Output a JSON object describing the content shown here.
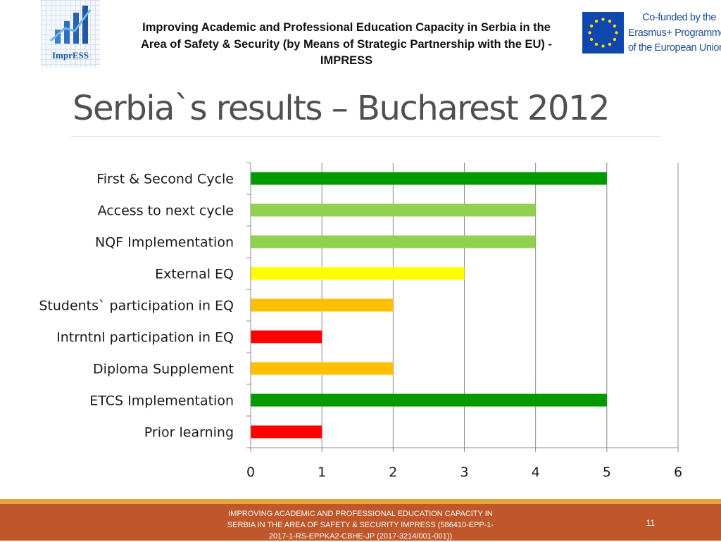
{
  "header": {
    "title": "Improving Academic and Professional Education Capacity in Serbia in the Area of Safety & Security (by Means of Strategic Partnership with the EU) - IMPRESS",
    "logo_text": "ImprESS",
    "eu_lines": [
      "Co-funded by the",
      "Erasmus+ Programme",
      "of the European Union"
    ]
  },
  "slide": {
    "title": "Serbia`s results – Bucharest 2012"
  },
  "chart_data": {
    "type": "bar",
    "orientation": "horizontal",
    "title": "",
    "xlabel": "",
    "ylabel": "",
    "categories": [
      "First & Second Cycle",
      "Access to next cycle",
      "NQF Implementation",
      "External EQ",
      "Students` participation in EQ",
      "Intrntnl participation in EQ",
      "Diploma Supplement",
      "ETCS Implementation",
      "Prior learning"
    ],
    "values": [
      5,
      4,
      4,
      3,
      2,
      1,
      2,
      5,
      1
    ],
    "bar_colors": [
      "#009900",
      "#92d050",
      "#92d050",
      "#ffff00",
      "#ffc000",
      "#ff0000",
      "#ffc000",
      "#009900",
      "#ff0000"
    ],
    "xlim": [
      0,
      6
    ],
    "xticks": [
      0,
      1,
      2,
      3,
      4,
      5,
      6
    ],
    "grid": true,
    "legend": "none"
  },
  "footer": {
    "text": "IMPROVING ACADEMIC AND PROFESSIONAL EDUCATION CAPACITY IN SERBIA IN THE AREA OF SAFETY & SECURITY IMPRESS (586410-EPP-1-2017-1-RS-EPPKA2-CBHE-JP (2017-3214/001-001))",
    "page_number": "11"
  }
}
